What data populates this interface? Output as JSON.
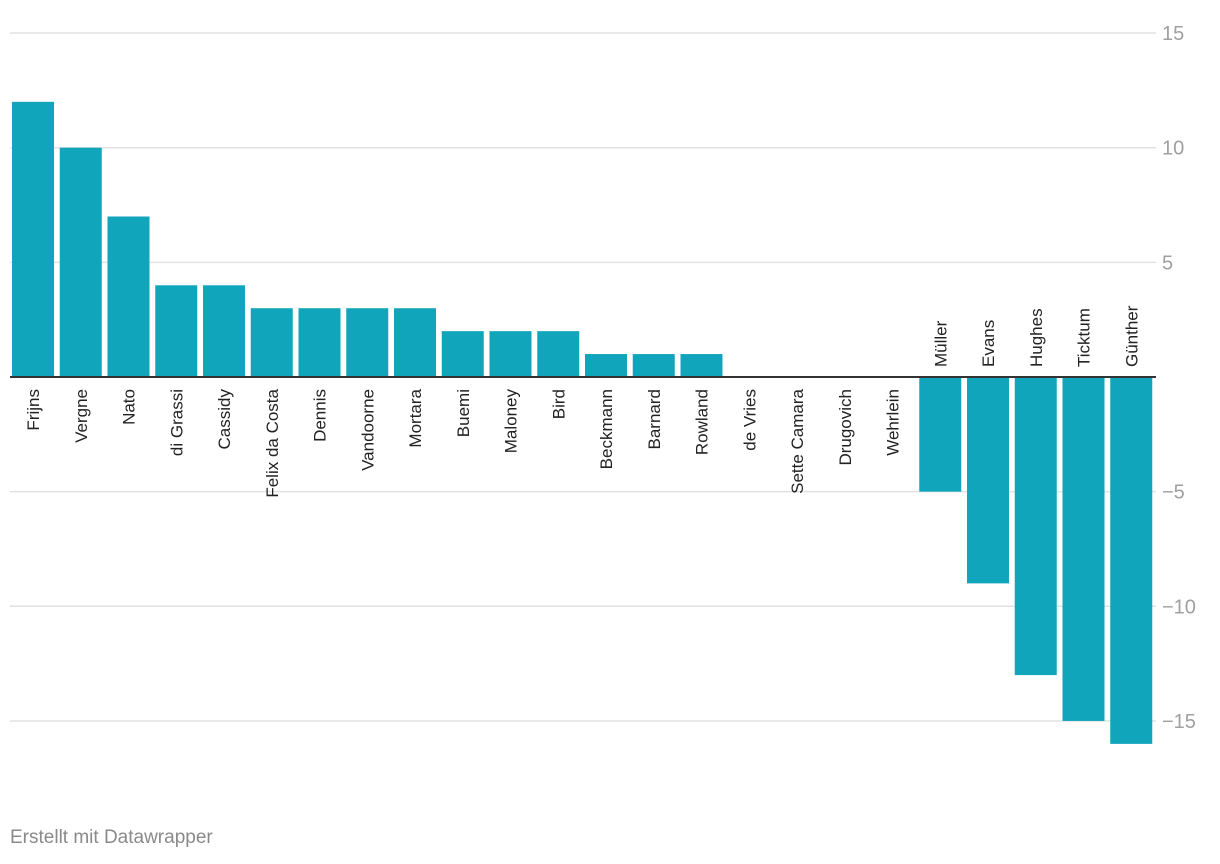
{
  "chart_data": {
    "type": "bar",
    "title": "",
    "xlabel": "",
    "ylabel": "",
    "categories": [
      "Frijns",
      "Vergne",
      "Nato",
      "di Grassi",
      "Cassidy",
      "Felix da Costa",
      "Dennis",
      "Vandoorne",
      "Mortara",
      "Buemi",
      "Maloney",
      "Bird",
      "Beckmann",
      "Barnard",
      "Rowland",
      "de Vries",
      "Sette Camara",
      "Drugovich",
      "Wehrlein",
      "Müller",
      "Evans",
      "Hughes",
      "Ticktum",
      "Günther"
    ],
    "values": [
      12,
      10,
      7,
      4,
      4,
      3,
      3,
      3,
      3,
      2,
      2,
      2,
      1,
      1,
      1,
      0,
      0,
      0,
      0,
      -5,
      -9,
      -13,
      -15,
      -16
    ],
    "ylim": [
      -16,
      15
    ],
    "yticks": [
      15,
      10,
      5,
      -5,
      -10,
      -15
    ],
    "ytick_labels": [
      "15",
      "10",
      "5",
      "−5",
      "−10",
      "−15"
    ],
    "grid": true,
    "axis_position": "right",
    "bar_color": "#11a5bb"
  },
  "footer": {
    "credit": "Erstellt mit Datawrapper"
  }
}
